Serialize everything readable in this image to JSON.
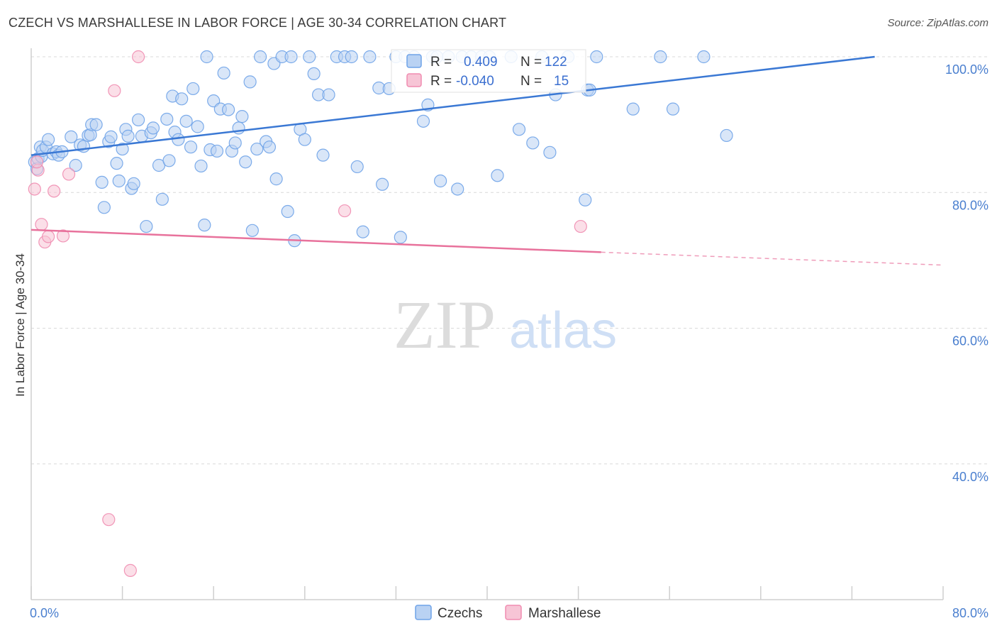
{
  "header": {
    "title": "CZECH VS MARSHALLESE IN LABOR FORCE | AGE 30-34 CORRELATION CHART",
    "source": "Source: ZipAtlas.com"
  },
  "legend": {
    "rows": [
      {
        "r_label": "R =",
        "r_value": "0.409",
        "n_label": "N =",
        "n_value": "122",
        "color": "#6fa3e8"
      },
      {
        "r_label": "R =",
        "r_value": "-0.040",
        "n_label": "N =",
        "n_value": "15",
        "color": "#f08cb0"
      }
    ]
  },
  "bottom_legend": [
    {
      "label": "Czechs",
      "color": "#6fa3e8"
    },
    {
      "label": "Marshallese",
      "color": "#f08cb0"
    }
  ],
  "watermark": {
    "zip": "ZIP",
    "atlas": "atlas"
  },
  "colors": {
    "blue": "#3a78d4",
    "pink": "#e8729c",
    "blue_fill": "#b9d2f3",
    "pink_fill": "#f7c5d6",
    "grid": "#d9d9d9"
  },
  "chart_data": {
    "type": "scatter",
    "title": "CZECH VS MARSHALLESE IN LABOR FORCE | AGE 30-34 CORRELATION CHART",
    "xlabel": "",
    "ylabel": "In Labor Force | Age 30-34",
    "xlim": [
      0,
      80
    ],
    "ylim": [
      20,
      101.5
    ],
    "x_tick_labels": [
      {
        "value": 0,
        "label": "0.0%"
      },
      {
        "value": 80,
        "label": "80.0%"
      }
    ],
    "y_tick_labels": [
      {
        "value": 100,
        "label": "100.0%"
      },
      {
        "value": 80,
        "label": "80.0%"
      },
      {
        "value": 60,
        "label": "60.0%"
      },
      {
        "value": 40,
        "label": "40.0%"
      }
    ],
    "grid": true,
    "legend_position": "top-center",
    "series": [
      {
        "name": "Czechs",
        "color": "#6fa3e8",
        "trend": {
          "x": [
            0,
            74
          ],
          "y": [
            85.5,
            100
          ]
        },
        "points": [
          [
            0.3,
            84.5
          ],
          [
            0.5,
            83.5
          ],
          [
            0.6,
            85.0
          ],
          [
            0.8,
            86.7
          ],
          [
            0.9,
            85.3
          ],
          [
            1.0,
            86.2
          ],
          [
            1.3,
            86.7
          ],
          [
            1.5,
            87.8
          ],
          [
            1.9,
            85.7
          ],
          [
            2.2,
            86.0
          ],
          [
            2.4,
            85.5
          ],
          [
            2.7,
            86.0
          ],
          [
            3.5,
            88.2
          ],
          [
            3.9,
            84.0
          ],
          [
            4.3,
            87.0
          ],
          [
            4.6,
            86.8
          ],
          [
            5.0,
            88.4
          ],
          [
            5.2,
            88.5
          ],
          [
            5.3,
            90.0
          ],
          [
            5.7,
            90.0
          ],
          [
            6.2,
            81.5
          ],
          [
            6.4,
            77.8
          ],
          [
            6.8,
            87.5
          ],
          [
            7.0,
            88.2
          ],
          [
            7.5,
            84.3
          ],
          [
            7.7,
            81.7
          ],
          [
            8.0,
            86.4
          ],
          [
            8.3,
            89.3
          ],
          [
            8.5,
            88.3
          ],
          [
            8.8,
            80.6
          ],
          [
            9.0,
            81.3
          ],
          [
            9.4,
            90.7
          ],
          [
            9.7,
            88.3
          ],
          [
            10.1,
            75.0
          ],
          [
            10.5,
            88.8
          ],
          [
            10.7,
            89.5
          ],
          [
            11.2,
            84.0
          ],
          [
            11.5,
            79.0
          ],
          [
            11.9,
            90.8
          ],
          [
            12.1,
            84.7
          ],
          [
            12.4,
            94.2
          ],
          [
            12.6,
            88.9
          ],
          [
            12.9,
            87.8
          ],
          [
            13.2,
            93.8
          ],
          [
            13.6,
            90.5
          ],
          [
            14.0,
            86.7
          ],
          [
            14.2,
            95.3
          ],
          [
            14.6,
            89.7
          ],
          [
            14.9,
            83.9
          ],
          [
            15.2,
            75.2
          ],
          [
            15.4,
            100
          ],
          [
            15.7,
            86.3
          ],
          [
            16.0,
            93.5
          ],
          [
            16.3,
            86.1
          ],
          [
            16.6,
            92.3
          ],
          [
            16.9,
            97.6
          ],
          [
            17.3,
            92.2
          ],
          [
            17.6,
            86.1
          ],
          [
            17.9,
            87.3
          ],
          [
            18.2,
            89.5
          ],
          [
            18.5,
            91.2
          ],
          [
            18.8,
            84.5
          ],
          [
            19.2,
            96.3
          ],
          [
            19.4,
            74.4
          ],
          [
            19.8,
            86.4
          ],
          [
            20.1,
            100
          ],
          [
            20.6,
            87.5
          ],
          [
            20.9,
            86.7
          ],
          [
            21.3,
            99.0
          ],
          [
            21.5,
            82.0
          ],
          [
            22.0,
            100
          ],
          [
            22.5,
            77.2
          ],
          [
            22.8,
            100
          ],
          [
            23.1,
            72.9
          ],
          [
            23.6,
            89.3
          ],
          [
            24.0,
            87.8
          ],
          [
            24.4,
            100
          ],
          [
            24.8,
            97.5
          ],
          [
            25.2,
            94.4
          ],
          [
            25.6,
            85.5
          ],
          [
            26.1,
            94.4
          ],
          [
            26.8,
            100
          ],
          [
            27.5,
            100
          ],
          [
            28.1,
            100
          ],
          [
            28.6,
            83.8
          ],
          [
            29.1,
            74.2
          ],
          [
            29.7,
            100
          ],
          [
            30.5,
            95.4
          ],
          [
            30.8,
            81.2
          ],
          [
            31.4,
            95.3
          ],
          [
            32.0,
            100
          ],
          [
            32.4,
            73.4
          ],
          [
            32.8,
            100
          ],
          [
            33.6,
            100
          ],
          [
            34.4,
            90.5
          ],
          [
            34.8,
            92.9
          ],
          [
            35.2,
            100
          ],
          [
            35.6,
            100
          ],
          [
            35.9,
            81.7
          ],
          [
            36.6,
            100
          ],
          [
            37.4,
            80.5
          ],
          [
            37.8,
            100
          ],
          [
            38.6,
            100
          ],
          [
            39.5,
            100
          ],
          [
            40.2,
            100
          ],
          [
            40.9,
            82.5
          ],
          [
            42.1,
            100
          ],
          [
            42.8,
            89.3
          ],
          [
            44.0,
            87.3
          ],
          [
            44.8,
            100
          ],
          [
            45.5,
            85.9
          ],
          [
            46.0,
            94.4
          ],
          [
            47.1,
            100
          ],
          [
            48.6,
            78.9
          ],
          [
            48.8,
            95.1
          ],
          [
            49.0,
            95.1
          ],
          [
            49.6,
            100
          ],
          [
            52.8,
            92.3
          ],
          [
            55.2,
            100
          ],
          [
            56.3,
            92.3
          ],
          [
            59.0,
            100
          ],
          [
            61.0,
            88.4
          ]
        ]
      },
      {
        "name": "Marshallese",
        "color": "#f08cb0",
        "trend": {
          "x": [
            0,
            50
          ],
          "y": [
            74.5,
            71.2
          ]
        },
        "trend_dashed": {
          "x": [
            50,
            80
          ],
          "y": [
            71.2,
            69.3
          ]
        },
        "points": [
          [
            0.3,
            80.5
          ],
          [
            0.6,
            83.3
          ],
          [
            0.9,
            75.3
          ],
          [
            1.2,
            72.7
          ],
          [
            1.5,
            73.5
          ],
          [
            2.0,
            80.2
          ],
          [
            2.8,
            73.6
          ],
          [
            3.3,
            82.7
          ],
          [
            6.8,
            31.8
          ],
          [
            7.3,
            95.0
          ],
          [
            8.7,
            24.3
          ],
          [
            9.4,
            100
          ],
          [
            27.5,
            77.3
          ],
          [
            48.2,
            75.0
          ],
          [
            0.5,
            84.5
          ]
        ]
      }
    ]
  }
}
